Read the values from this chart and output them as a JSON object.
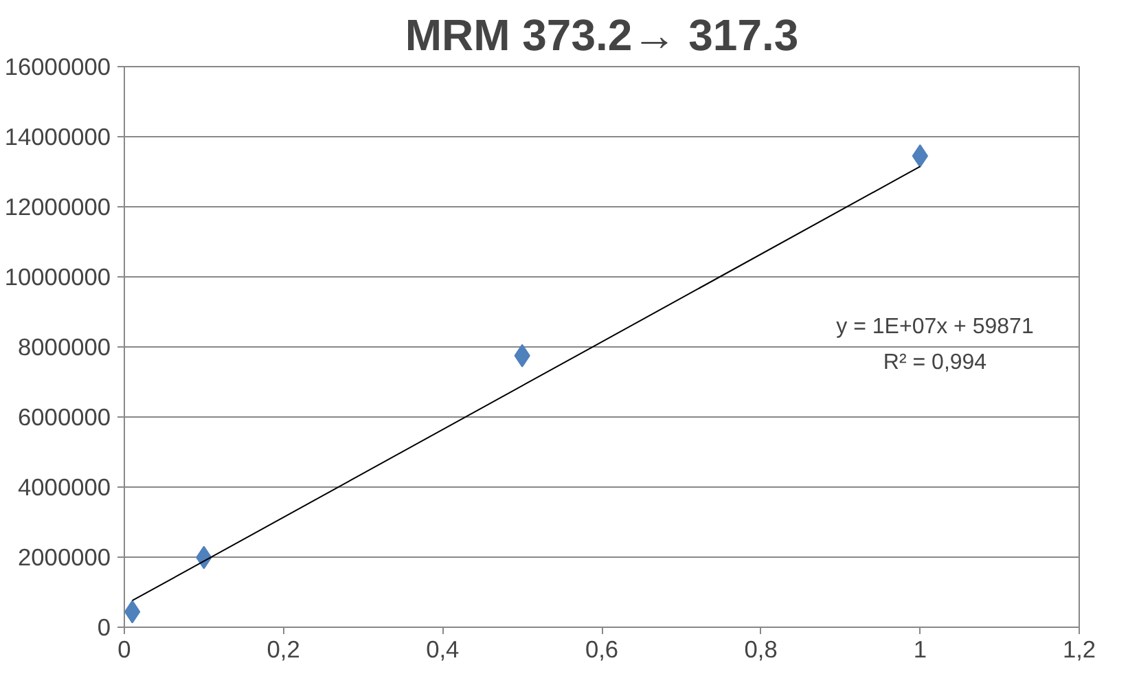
{
  "chart_data": {
    "type": "scatter",
    "title": "MRM 373.2→ 317.3",
    "x": [
      0.01,
      0.1,
      0.5,
      1
    ],
    "series": [
      {
        "color": "#4f81bd",
        "values": [
          440000,
          1990000,
          7750000,
          13450000
        ]
      },
      {
        "type": "line",
        "color": "#000000",
        "x": [
          0.01,
          1
        ],
        "values": [
          760000,
          13150000
        ],
        "marker": "none"
      }
    ],
    "xlim": [
      0,
      1.2
    ],
    "xticks": [
      0,
      {
        "value": 0.2,
        "label": "0,2"
      },
      {
        "value": 0.4,
        "label": "0,4"
      },
      {
        "value": 0.6,
        "label": "0,6"
      },
      {
        "value": 0.8,
        "label": "0,8"
      },
      1,
      {
        "value": 1.2,
        "label": "1,2"
      }
    ],
    "ylim": [
      0,
      16000000
    ],
    "yticks": [
      0,
      2000000,
      4000000,
      6000000,
      8000000,
      10000000,
      12000000,
      14000000,
      16000000
    ],
    "grid": "y",
    "marker": "diamond",
    "annotations": [
      "y = 1E+07x + 59871",
      "R² = 0,994"
    ]
  }
}
